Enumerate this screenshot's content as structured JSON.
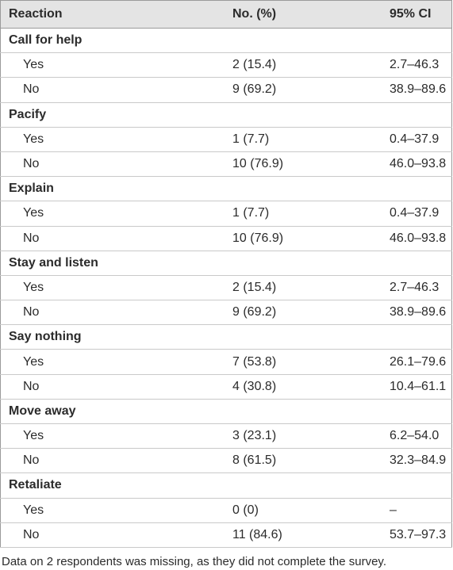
{
  "table": {
    "header": [
      "Reaction",
      "No. (%)",
      "95% CI"
    ],
    "groups": [
      {
        "title": "Call for help",
        "rows": [
          [
            "Yes",
            "2 (15.4)",
            "2.7–46.3"
          ],
          [
            "No",
            "9 (69.2)",
            "38.9–89.6"
          ]
        ]
      },
      {
        "title": "Pacify",
        "rows": [
          [
            "Yes",
            "1 (7.7)",
            "0.4–37.9"
          ],
          [
            "No",
            "10 (76.9)",
            "46.0–93.8"
          ]
        ]
      },
      {
        "title": "Explain",
        "rows": [
          [
            "Yes",
            "1 (7.7)",
            "0.4–37.9"
          ],
          [
            "No",
            "10 (76.9)",
            "46.0–93.8"
          ]
        ]
      },
      {
        "title": "Stay and listen",
        "rows": [
          [
            "Yes",
            "2 (15.4)",
            "2.7–46.3"
          ],
          [
            "No",
            "9 (69.2)",
            "38.9–89.6"
          ]
        ]
      },
      {
        "title": "Say nothing",
        "rows": [
          [
            "Yes",
            "7 (53.8)",
            "26.1–79.6"
          ],
          [
            "No",
            "4 (30.8)",
            "10.4–61.1"
          ]
        ]
      },
      {
        "title": "Move away",
        "rows": [
          [
            "Yes",
            "3 (23.1)",
            "6.2–54.0"
          ],
          [
            "No",
            "8 (61.5)",
            "32.3–84.9"
          ]
        ]
      },
      {
        "title": "Retaliate",
        "rows": [
          [
            "Yes",
            "0 (0)",
            "–"
          ],
          [
            "No",
            "11 (84.6)",
            "53.7–97.3"
          ]
        ]
      }
    ]
  },
  "footnote": "Data on 2 respondents was missing, as they did not complete the survey."
}
